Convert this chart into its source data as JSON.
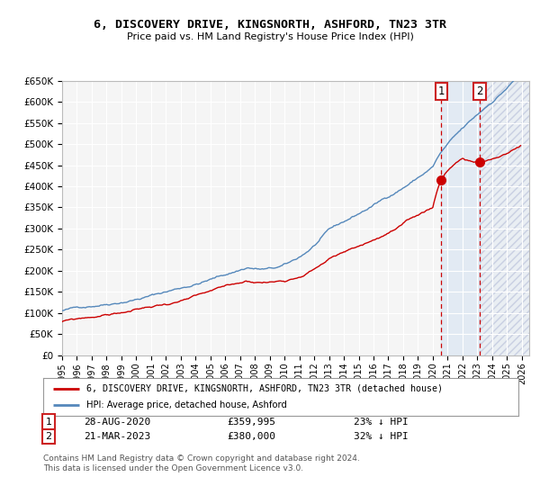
{
  "title": "6, DISCOVERY DRIVE, KINGSNORTH, ASHFORD, TN23 3TR",
  "subtitle": "Price paid vs. HM Land Registry's House Price Index (HPI)",
  "ylim": [
    0,
    650000
  ],
  "xlim_start": 1995.0,
  "xlim_end": 2026.5,
  "hpi_color": "#5588bb",
  "price_color": "#cc0000",
  "dashed_line_color": "#cc0000",
  "fill_color": "#ddeeff",
  "legend_label_price": "6, DISCOVERY DRIVE, KINGSNORTH, ASHFORD, TN23 3TR (detached house)",
  "legend_label_hpi": "HPI: Average price, detached house, Ashford",
  "transaction1_date": "28-AUG-2020",
  "transaction1_price": "£359,995",
  "transaction1_pct": "23% ↓ HPI",
  "transaction2_date": "21-MAR-2023",
  "transaction2_price": "£380,000",
  "transaction2_pct": "32% ↓ HPI",
  "footnote": "Contains HM Land Registry data © Crown copyright and database right 2024.\nThis data is licensed under the Open Government Licence v3.0.",
  "plot_bg_color": "#f5f5f5",
  "grid_color": "#ffffff",
  "t1_year": 2020.58,
  "t2_year": 2023.17,
  "t1_price_val": 359995,
  "t2_price_val": 380000
}
